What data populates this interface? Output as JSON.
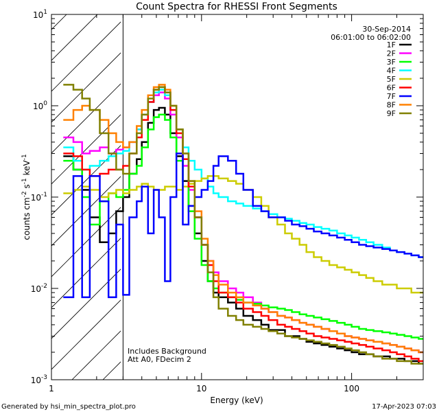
{
  "chart_data": {
    "type": "line",
    "title": "Count Spectra for RHESSI Front Segments",
    "xlabel": "Energy (keV)",
    "ylabel": "counts cm",
    "ylabel_sup1": "-2",
    "ylabel_mid": " s",
    "ylabel_sup2": "-1",
    "ylabel_mid2": " keV",
    "ylabel_sup3": "-1",
    "x_scale": "log",
    "y_scale": "log",
    "xlim": [
      1,
      300
    ],
    "ylim": [
      0.001,
      10
    ],
    "x_ticks": [
      {
        "value": 1,
        "label": "1"
      },
      {
        "value": 10,
        "label": "10"
      },
      {
        "value": 100,
        "label": "100"
      }
    ],
    "y_ticks": [
      {
        "value": 0.001,
        "base": "10",
        "exp": "-3"
      },
      {
        "value": 0.01,
        "base": "10",
        "exp": "-2"
      },
      {
        "value": 0.1,
        "base": "10",
        "exp": "-1"
      },
      {
        "value": 1,
        "base": "10",
        "exp": "0"
      },
      {
        "value": 10,
        "base": "10",
        "exp": "1"
      }
    ],
    "hatched_region": [
      1,
      3
    ],
    "legend_position": "top-right",
    "date": "30-Sep-2014",
    "time_range": "06:01:00 to 06:02:00",
    "annotation_lines": [
      "Includes Background",
      "Att A0, FDecim 2"
    ],
    "series": [
      {
        "name": "1F",
        "color": "#000000",
        "x": [
          1.2,
          1.4,
          1.6,
          1.8,
          2.1,
          2.4,
          2.7,
          3.0,
          3.3,
          3.7,
          4.0,
          4.4,
          4.8,
          5.2,
          5.7,
          6.2,
          6.8,
          7.5,
          8.2,
          9.0,
          10,
          11,
          12,
          13,
          15,
          17,
          19,
          22,
          25,
          28,
          32,
          36,
          40,
          45,
          50,
          56,
          63,
          71,
          80,
          90,
          100,
          112,
          125,
          140,
          160,
          180,
          200,
          225,
          250,
          280
        ],
        "y": [
          0.28,
          0.2,
          0.12,
          0.06,
          0.032,
          0.04,
          0.07,
          0.1,
          0.18,
          0.26,
          0.4,
          0.65,
          0.9,
          0.95,
          0.8,
          0.5,
          0.28,
          0.15,
          0.08,
          0.04,
          0.02,
          0.012,
          0.009,
          0.008,
          0.007,
          0.006,
          0.005,
          0.0045,
          0.004,
          0.0035,
          0.0035,
          0.003,
          0.003,
          0.0028,
          0.0026,
          0.0025,
          0.0024,
          0.0023,
          0.0022,
          0.0021,
          0.002,
          0.0019,
          0.0019,
          0.0018,
          0.0018,
          0.0017,
          0.0017,
          0.0016,
          0.0016,
          0.0015
        ]
      },
      {
        "name": "2F",
        "color": "#ff00ff",
        "x": [
          1.2,
          1.4,
          1.6,
          1.8,
          2.1,
          2.4,
          2.7,
          3.0,
          3.3,
          3.7,
          4.0,
          4.4,
          4.8,
          5.2,
          5.7,
          6.2,
          6.8,
          7.5,
          8.2,
          9.0,
          10,
          11,
          12,
          13,
          15,
          17,
          19,
          22,
          25,
          28,
          32,
          36,
          40,
          45,
          50,
          56,
          63,
          71,
          80,
          90,
          100,
          112,
          125,
          140,
          160,
          180,
          200,
          225,
          250,
          280
        ],
        "y": [
          0.45,
          0.4,
          0.3,
          0.32,
          0.35,
          0.3,
          0.33,
          0.35,
          0.4,
          0.55,
          0.8,
          1.1,
          1.3,
          1.4,
          1.2,
          0.8,
          0.45,
          0.22,
          0.12,
          0.06,
          0.03,
          0.02,
          0.015,
          0.012,
          0.01,
          0.009,
          0.008,
          0.007,
          0.006,
          0.0055,
          0.005,
          0.0048,
          0.0045,
          0.0042,
          0.004,
          0.0038,
          0.0036,
          0.0034,
          0.0032,
          0.003,
          0.0029,
          0.0028,
          0.0027,
          0.0026,
          0.0025,
          0.0024,
          0.0023,
          0.0022,
          0.0021,
          0.002
        ]
      },
      {
        "name": "3F",
        "color": "#00ff00",
        "x": [
          1.2,
          1.4,
          1.6,
          1.8,
          2.1,
          2.4,
          2.7,
          3.0,
          3.3,
          3.7,
          4.0,
          4.4,
          4.8,
          5.2,
          5.7,
          6.2,
          6.8,
          7.5,
          8.2,
          9.0,
          10,
          11,
          12,
          13,
          15,
          17,
          19,
          22,
          25,
          28,
          32,
          36,
          40,
          45,
          50,
          56,
          63,
          71,
          80,
          90,
          100,
          112,
          125,
          140,
          160,
          180,
          200,
          225,
          250,
          280
        ],
        "y": [
          0.25,
          0.2,
          0.1,
          0.05,
          0.09,
          0.11,
          0.1,
          0.12,
          0.18,
          0.22,
          0.35,
          0.55,
          0.75,
          0.8,
          0.7,
          0.45,
          0.25,
          0.13,
          0.07,
          0.035,
          0.018,
          0.012,
          0.01,
          0.009,
          0.008,
          0.0075,
          0.007,
          0.0068,
          0.0065,
          0.0062,
          0.006,
          0.0058,
          0.0055,
          0.0052,
          0.005,
          0.0048,
          0.0046,
          0.0044,
          0.0042,
          0.004,
          0.0038,
          0.0036,
          0.0035,
          0.0034,
          0.0033,
          0.0032,
          0.0031,
          0.003,
          0.0029,
          0.0028
        ]
      },
      {
        "name": "4F",
        "color": "#00ffff",
        "x": [
          1.2,
          1.4,
          1.6,
          1.8,
          2.1,
          2.4,
          2.7,
          3.0,
          3.3,
          3.7,
          4.0,
          4.4,
          4.8,
          5.2,
          5.7,
          6.2,
          6.8,
          7.5,
          8.2,
          9.0,
          10,
          11,
          12,
          13,
          15,
          17,
          19,
          22,
          25,
          28,
          32,
          36,
          40,
          45,
          50,
          56,
          63,
          71,
          80,
          90,
          100,
          112,
          125,
          140,
          160,
          180,
          200,
          225,
          250,
          280
        ],
        "y": [
          0.35,
          0.25,
          0.2,
          0.22,
          0.25,
          0.28,
          0.3,
          0.32,
          0.4,
          0.55,
          0.8,
          1.1,
          1.4,
          1.5,
          1.3,
          0.9,
          0.55,
          0.35,
          0.25,
          0.2,
          0.16,
          0.13,
          0.11,
          0.1,
          0.09,
          0.085,
          0.08,
          0.075,
          0.07,
          0.065,
          0.06,
          0.058,
          0.055,
          0.052,
          0.05,
          0.047,
          0.045,
          0.043,
          0.04,
          0.038,
          0.036,
          0.034,
          0.032,
          0.03,
          0.028,
          0.026,
          0.025,
          0.024,
          0.023,
          0.022
        ]
      },
      {
        "name": "5F",
        "color": "#cccc00",
        "x": [
          1.2,
          1.4,
          1.6,
          1.8,
          2.1,
          2.4,
          2.7,
          3.0,
          3.3,
          3.7,
          4.0,
          4.4,
          4.8,
          5.2,
          5.7,
          6.2,
          6.8,
          7.5,
          8.2,
          9.0,
          10,
          11,
          12,
          13,
          15,
          17,
          19,
          22,
          25,
          28,
          32,
          36,
          40,
          45,
          50,
          56,
          63,
          71,
          80,
          90,
          100,
          112,
          125,
          140,
          160,
          180,
          200,
          225,
          250,
          280
        ],
        "y": [
          0.11,
          0.12,
          0.13,
          0.12,
          0.1,
          0.11,
          0.12,
          0.11,
          0.12,
          0.13,
          0.14,
          0.13,
          0.12,
          0.12,
          0.13,
          0.13,
          0.12,
          0.13,
          0.14,
          0.15,
          0.16,
          0.17,
          0.17,
          0.16,
          0.15,
          0.14,
          0.12,
          0.1,
          0.08,
          0.06,
          0.05,
          0.04,
          0.035,
          0.03,
          0.025,
          0.022,
          0.02,
          0.018,
          0.017,
          0.016,
          0.015,
          0.014,
          0.013,
          0.012,
          0.011,
          0.011,
          0.01,
          0.01,
          0.009,
          0.009
        ]
      },
      {
        "name": "6F",
        "color": "#ff0000",
        "x": [
          1.2,
          1.4,
          1.6,
          1.8,
          2.1,
          2.4,
          2.7,
          3.0,
          3.3,
          3.7,
          4.0,
          4.4,
          4.8,
          5.2,
          5.7,
          6.2,
          6.8,
          7.5,
          8.2,
          9.0,
          10,
          11,
          12,
          13,
          15,
          17,
          19,
          22,
          25,
          28,
          32,
          36,
          40,
          45,
          50,
          56,
          63,
          71,
          80,
          90,
          100,
          112,
          125,
          140,
          160,
          180,
          200,
          225,
          250,
          280
        ],
        "y": [
          0.3,
          0.28,
          0.2,
          0.17,
          0.18,
          0.2,
          0.2,
          0.22,
          0.3,
          0.45,
          0.7,
          1.1,
          1.5,
          1.6,
          1.4,
          0.9,
          0.5,
          0.26,
          0.13,
          0.06,
          0.03,
          0.018,
          0.012,
          0.009,
          0.008,
          0.007,
          0.006,
          0.0055,
          0.005,
          0.0045,
          0.004,
          0.0038,
          0.0036,
          0.0034,
          0.0032,
          0.003,
          0.0029,
          0.0028,
          0.0027,
          0.0026,
          0.0025,
          0.0024,
          0.0023,
          0.0022,
          0.0021,
          0.002,
          0.0019,
          0.0018,
          0.0017,
          0.0016
        ]
      },
      {
        "name": "7F",
        "color": "#0000ff",
        "x": [
          1.2,
          1.4,
          1.6,
          1.8,
          2.1,
          2.4,
          2.7,
          3.0,
          3.3,
          3.7,
          4.0,
          4.4,
          4.8,
          5.2,
          5.7,
          6.2,
          6.8,
          7.5,
          8.2,
          9.0,
          10,
          11,
          12,
          13,
          15,
          17,
          19,
          22,
          25,
          28,
          32,
          36,
          40,
          45,
          50,
          56,
          63,
          71,
          80,
          90,
          100,
          112,
          125,
          140,
          160,
          180,
          200,
          225,
          250,
          280
        ],
        "y": [
          0.008,
          0.17,
          0.008,
          0.17,
          0.09,
          0.008,
          0.05,
          0.0085,
          0.06,
          0.09,
          0.13,
          0.04,
          0.12,
          0.06,
          0.012,
          0.1,
          0.3,
          0.05,
          0.08,
          0.1,
          0.12,
          0.15,
          0.22,
          0.28,
          0.25,
          0.18,
          0.12,
          0.08,
          0.07,
          0.06,
          0.06,
          0.055,
          0.05,
          0.048,
          0.045,
          0.042,
          0.04,
          0.038,
          0.036,
          0.034,
          0.032,
          0.03,
          0.029,
          0.028,
          0.027,
          0.026,
          0.025,
          0.024,
          0.023,
          0.022
        ]
      },
      {
        "name": "8F",
        "color": "#ff8000",
        "x": [
          1.2,
          1.4,
          1.6,
          1.8,
          2.1,
          2.4,
          2.7,
          3.0,
          3.3,
          3.7,
          4.0,
          4.4,
          4.8,
          5.2,
          5.7,
          6.2,
          6.8,
          7.5,
          8.2,
          9.0,
          10,
          11,
          12,
          13,
          15,
          17,
          19,
          22,
          25,
          28,
          32,
          36,
          40,
          45,
          50,
          56,
          63,
          71,
          80,
          90,
          100,
          112,
          125,
          140,
          160,
          180,
          200,
          225,
          250,
          280
        ],
        "y": [
          0.7,
          0.9,
          1.0,
          0.9,
          0.7,
          0.5,
          0.4,
          0.35,
          0.4,
          0.6,
          0.9,
          1.3,
          1.6,
          1.7,
          1.5,
          1.0,
          0.55,
          0.3,
          0.15,
          0.07,
          0.035,
          0.02,
          0.014,
          0.011,
          0.009,
          0.008,
          0.007,
          0.0065,
          0.006,
          0.0055,
          0.005,
          0.0048,
          0.0045,
          0.0042,
          0.004,
          0.0038,
          0.0036,
          0.0034,
          0.0032,
          0.003,
          0.0029,
          0.0028,
          0.0027,
          0.0026,
          0.0025,
          0.0024,
          0.0023,
          0.0022,
          0.0021,
          0.002
        ]
      },
      {
        "name": "9F",
        "color": "#808000",
        "x": [
          1.2,
          1.4,
          1.6,
          1.8,
          2.1,
          2.4,
          2.7,
          3.0,
          3.3,
          3.7,
          4.0,
          4.4,
          4.8,
          5.2,
          5.7,
          6.2,
          6.8,
          7.5,
          8.2,
          9.0,
          10,
          11,
          12,
          13,
          15,
          17,
          19,
          22,
          25,
          28,
          32,
          36,
          40,
          45,
          50,
          56,
          63,
          71,
          80,
          90,
          100,
          112,
          125,
          140,
          160,
          180,
          200,
          225,
          250,
          280
        ],
        "y": [
          1.7,
          1.5,
          1.2,
          0.9,
          0.5,
          0.3,
          0.2,
          0.18,
          0.3,
          0.5,
          0.8,
          1.2,
          1.5,
          1.6,
          1.4,
          1.0,
          0.55,
          0.3,
          0.15,
          0.06,
          0.03,
          0.015,
          0.008,
          0.006,
          0.005,
          0.0045,
          0.004,
          0.0038,
          0.0036,
          0.0034,
          0.0032,
          0.003,
          0.0029,
          0.0028,
          0.0027,
          0.0026,
          0.0025,
          0.0024,
          0.0023,
          0.0022,
          0.0021,
          0.002,
          0.0019,
          0.0018,
          0.0017,
          0.0017,
          0.0016,
          0.0016,
          0.0015,
          0.0015
        ]
      }
    ]
  },
  "footer": {
    "generated_by": "Generated by hsi_min_spectra_plot.pro",
    "timestamp": "17-Apr-2023 07:03"
  }
}
